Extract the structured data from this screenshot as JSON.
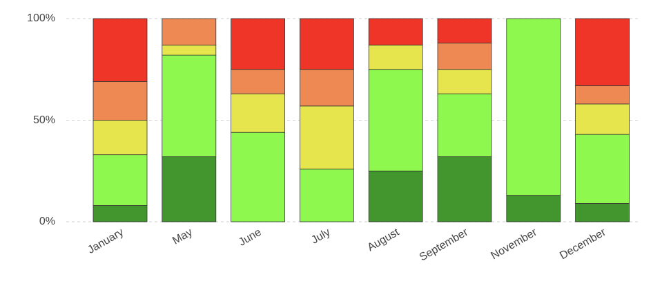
{
  "chart_data": {
    "type": "bar",
    "stacked": true,
    "normalized": true,
    "categories": [
      "January",
      "May",
      "June",
      "July",
      "August",
      "September",
      "November",
      "December"
    ],
    "series": [
      {
        "color": "#43962e",
        "values": [
          8,
          32,
          0,
          0,
          25,
          32,
          13,
          9
        ]
      },
      {
        "color": "#8ef84e",
        "values": [
          25,
          50,
          44,
          26,
          50,
          31,
          87,
          34
        ]
      },
      {
        "color": "#e6e54d",
        "values": [
          17,
          5,
          19,
          31,
          12,
          12,
          0,
          15
        ]
      },
      {
        "color": "#ef8953",
        "values": [
          19,
          13,
          12,
          18,
          0,
          13,
          0,
          9
        ]
      },
      {
        "color": "#ee3527",
        "values": [
          31,
          0,
          25,
          25,
          13,
          12,
          0,
          33
        ]
      }
    ],
    "y_ticks": [
      "0%",
      "50%",
      "100%"
    ],
    "ylim": [
      0,
      100
    ],
    "grid": true,
    "legend": "none"
  }
}
